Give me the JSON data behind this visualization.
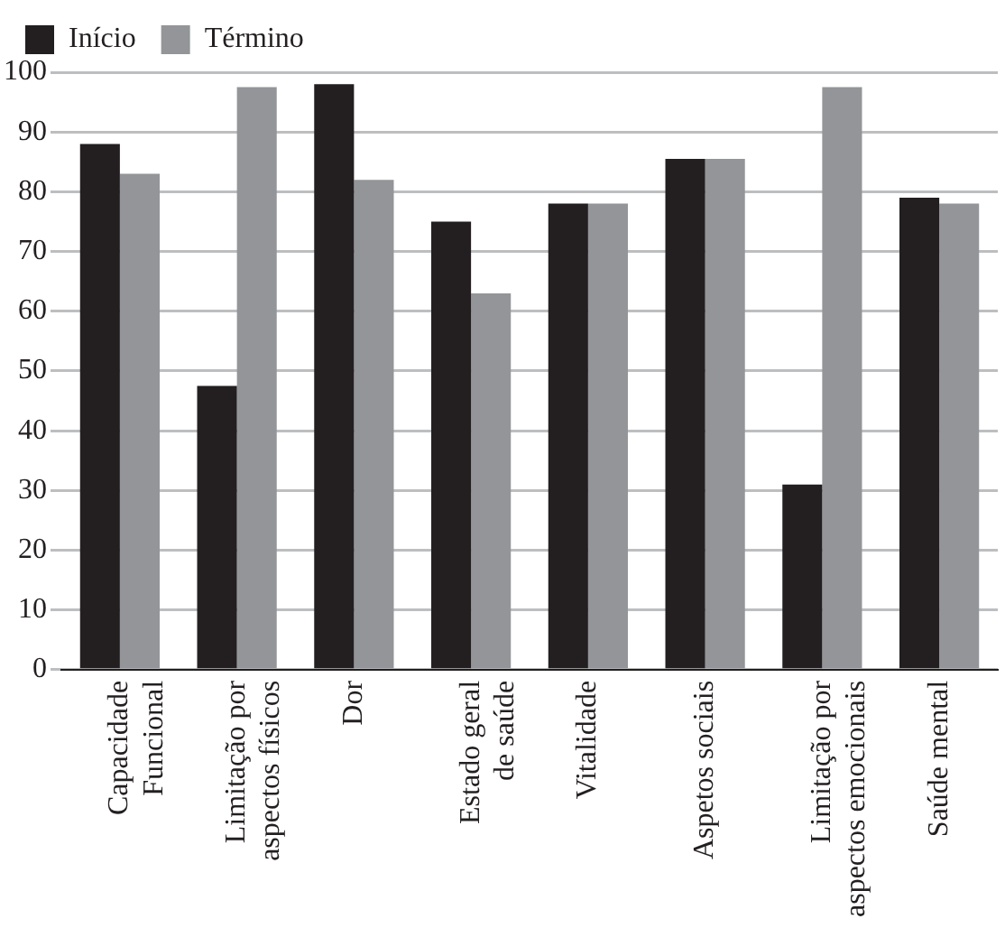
{
  "chart_data": {
    "type": "bar",
    "categories": [
      "Capacidade\nFuncional",
      "Limitação por\naspectos físicos",
      "Dor",
      "Estado geral\nde saúde",
      "Vitalidade",
      "Aspetos sociais",
      "Limitação por\naspectos emocionais",
      "Saúde mental"
    ],
    "series": [
      {
        "name": "Início",
        "color": "#231f20",
        "values": [
          88,
          47.5,
          98,
          75,
          78,
          85.5,
          31,
          79
        ]
      },
      {
        "name": "Término",
        "color": "#939598",
        "values": [
          83,
          97.5,
          82,
          63,
          78,
          85.5,
          97.5,
          78
        ]
      }
    ],
    "ylim": [
      0,
      100
    ],
    "yticks": [
      0,
      10,
      20,
      30,
      40,
      50,
      60,
      70,
      80,
      90,
      100
    ],
    "grid": "y",
    "legend": "top left"
  }
}
